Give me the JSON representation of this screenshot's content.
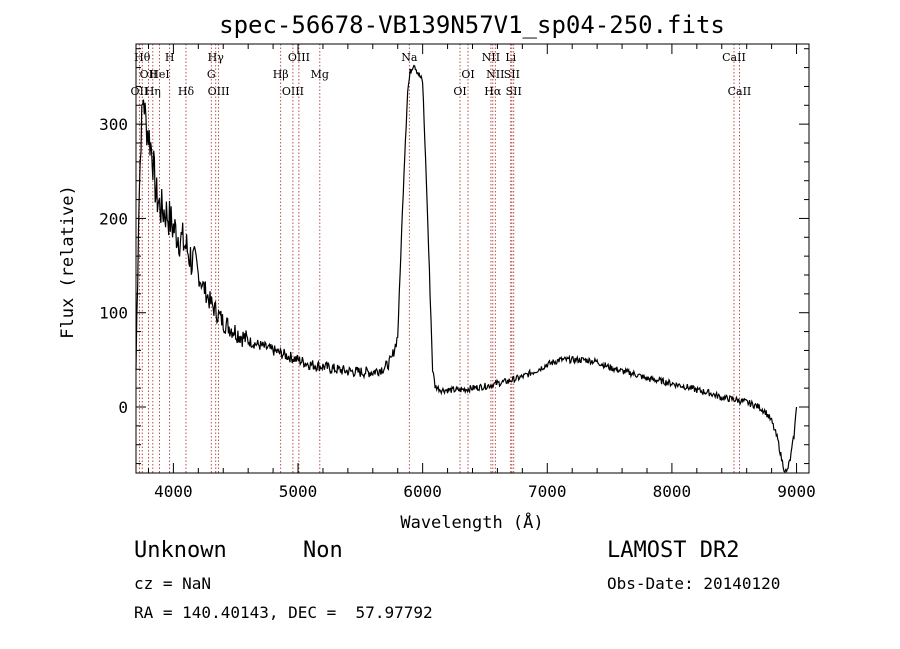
{
  "chart_data": {
    "type": "line",
    "title": "spec-56678-VB139N57V1_sp04-250.fits",
    "xlabel": "Wavelength (Å)",
    "ylabel": "Flux (relative)",
    "xlim": [
      3700,
      9100
    ],
    "ylim": [
      -70,
      385
    ],
    "xticks": [
      4000,
      5000,
      6000,
      7000,
      8000,
      9000
    ],
    "yticks": [
      0,
      100,
      200,
      300
    ],
    "grid": false,
    "line_color": "#000000",
    "marker_color": "#aa2222",
    "series": [
      {
        "x": [
          3700,
          3720,
          3740,
          3760,
          3780,
          3800,
          3830,
          3860,
          3900,
          3950,
          4000,
          4050,
          4100,
          4150,
          4200,
          4250,
          4300,
          4350,
          4400,
          4500,
          4600,
          4700,
          4800,
          4900,
          5000,
          5100,
          5200,
          5300,
          5400,
          5500,
          5600,
          5700,
          5750,
          5800,
          5850,
          5880,
          5900,
          5930,
          5960,
          6000,
          6030,
          6060,
          6080,
          6100,
          6150,
          6200,
          6300,
          6400,
          6500,
          6600,
          6700,
          6800,
          6900,
          7000,
          7100,
          7200,
          7300,
          7400,
          7500,
          7600,
          7700,
          7800,
          7900,
          8000,
          8100,
          8200,
          8300,
          8400,
          8500,
          8600,
          8700,
          8750,
          8800,
          8850,
          8880,
          8900,
          8920,
          8950,
          8980,
          9000
        ],
        "y": [
          40,
          200,
          290,
          330,
          300,
          290,
          270,
          225,
          210,
          205,
          190,
          180,
          170,
          155,
          140,
          125,
          110,
          100,
          90,
          80,
          70,
          65,
          60,
          55,
          50,
          45,
          43,
          40,
          38,
          37,
          37,
          42,
          50,
          75,
          250,
          335,
          355,
          365,
          355,
          345,
          240,
          120,
          40,
          22,
          18,
          18,
          18,
          20,
          22,
          25,
          28,
          32,
          38,
          45,
          50,
          50,
          50,
          48,
          42,
          38,
          35,
          30,
          28,
          25,
          22,
          18,
          15,
          10,
          8,
          5,
          0,
          -5,
          -15,
          -35,
          -55,
          -65,
          -70,
          -55,
          -30,
          0
        ]
      }
    ],
    "lines": [
      {
        "wave": 3750,
        "label": "Hθ",
        "row": 1
      },
      {
        "wave": 3727,
        "label": "OII",
        "row": 3
      },
      {
        "wave": 3800,
        "label": "OII",
        "row": 2
      },
      {
        "wave": 3835,
        "label": "Hη",
        "row": 3
      },
      {
        "wave": 3889,
        "label": "HeI",
        "row": 2
      },
      {
        "wave": 3970,
        "label": "H",
        "row": 1
      },
      {
        "wave": 4101,
        "label": "Hδ",
        "row": 3
      },
      {
        "wave": 4304,
        "label": "G",
        "row": 2
      },
      {
        "wave": 4340,
        "label": "Hγ",
        "row": 1
      },
      {
        "wave": 4363,
        "label": "OIII",
        "row": 3
      },
      {
        "wave": 4861,
        "label": "Hβ",
        "row": 2
      },
      {
        "wave": 4959,
        "label": "OIII",
        "row": 3
      },
      {
        "wave": 5007,
        "label": "OIII",
        "row": 1
      },
      {
        "wave": 5175,
        "label": "Mg",
        "row": 2
      },
      {
        "wave": 5893,
        "label": "Na",
        "row": 1
      },
      {
        "wave": 6300,
        "label": "OI",
        "row": 3
      },
      {
        "wave": 6364,
        "label": "OI",
        "row": 2
      },
      {
        "wave": 6548,
        "label": "NII",
        "row": 1
      },
      {
        "wave": 6563,
        "label": "Hα",
        "row": 3
      },
      {
        "wave": 6583,
        "label": "NII",
        "row": 2
      },
      {
        "wave": 6707,
        "label": "Li",
        "row": 1
      },
      {
        "wave": 6716,
        "label": "SII",
        "row": 2
      },
      {
        "wave": 6731,
        "label": "SII",
        "row": 3
      },
      {
        "wave": 8498,
        "label": "CaII",
        "row": 1
      },
      {
        "wave": 8542,
        "label": "CaII",
        "row": 3
      }
    ]
  },
  "info": {
    "class": "Unknown",
    "subclass": "Non",
    "survey": "LAMOST DR2",
    "cz": "cz = NaN",
    "obs_date": "Obs-Date: 20140120",
    "radec": "RA = 140.40143, DEC =  57.97792"
  }
}
